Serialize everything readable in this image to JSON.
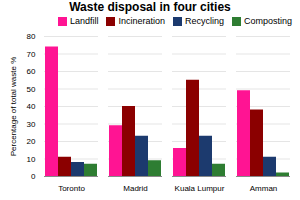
{
  "chart_data": {
    "type": "bar",
    "title": "Waste disposal in four cities",
    "ylabel": "Percentage of total waste %",
    "categories": [
      "Toronto",
      "Madrid",
      "Kuala Lumpur",
      "Amman"
    ],
    "series": [
      {
        "name": "Landfill",
        "color": "#FF1493",
        "values": [
          74,
          29,
          16,
          49
        ]
      },
      {
        "name": "Incineration",
        "color": "#8B0000",
        "values": [
          11,
          40,
          55,
          38
        ]
      },
      {
        "name": "Recycling",
        "color": "#1C3A6E",
        "values": [
          8,
          23,
          23,
          11
        ]
      },
      {
        "name": "Composting",
        "color": "#2E7D32",
        "values": [
          7,
          9,
          7,
          2
        ]
      }
    ],
    "ylim": [
      0,
      80
    ],
    "yticks": [
      0,
      10,
      20,
      30,
      40,
      50,
      60,
      70,
      80
    ],
    "grid": true,
    "legend": "upper right"
  }
}
